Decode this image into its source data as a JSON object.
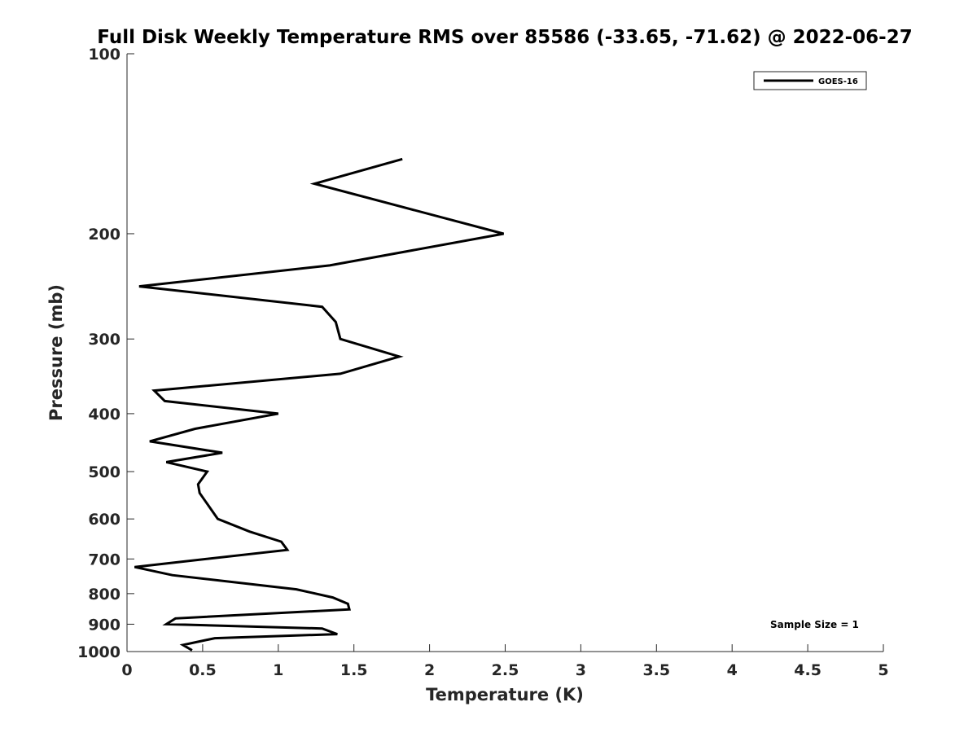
{
  "chart_data": {
    "type": "line",
    "title": "Full Disk Weekly Temperature RMS over 85586 (-33.65, -71.62) @ 2022-06-27",
    "xlabel": "Temperature (K)",
    "ylabel": "Pressure (mb)",
    "xlim": [
      0,
      5
    ],
    "ylim": [
      100,
      1000
    ],
    "y_scale": "log",
    "y_reversed": true,
    "grid": false,
    "legend_position": "top-right",
    "x_ticks": [
      "0",
      "0.5",
      "1",
      "1.5",
      "2",
      "2.5",
      "3",
      "3.5",
      "4",
      "4.5",
      "5"
    ],
    "y_ticks": [
      "100",
      "200",
      "300",
      "400",
      "500",
      "600",
      "700",
      "800",
      "900",
      "1000"
    ],
    "annotation": "Sample Size = 1",
    "series": [
      {
        "name": "GOES-16",
        "color": "#000000",
        "points": [
          [
            1.82,
            150
          ],
          [
            1.24,
            165
          ],
          [
            2.49,
            200
          ],
          [
            1.34,
            226
          ],
          [
            0.08,
            245
          ],
          [
            1.29,
            265
          ],
          [
            1.38,
            281
          ],
          [
            1.41,
            300
          ],
          [
            1.8,
            321
          ],
          [
            1.41,
            343
          ],
          [
            0.18,
            366
          ],
          [
            0.25,
            381
          ],
          [
            1.0,
            400
          ],
          [
            0.45,
            424
          ],
          [
            0.15,
            445
          ],
          [
            0.63,
            465
          ],
          [
            0.26,
            482
          ],
          [
            0.53,
            500
          ],
          [
            0.47,
            525
          ],
          [
            0.48,
            543
          ],
          [
            0.6,
            600
          ],
          [
            0.81,
            630
          ],
          [
            1.02,
            655
          ],
          [
            1.06,
            676
          ],
          [
            0.05,
            722
          ],
          [
            0.3,
            745
          ],
          [
            1.12,
            787
          ],
          [
            1.36,
            812
          ],
          [
            1.46,
            832
          ],
          [
            1.47,
            850
          ],
          [
            0.32,
            880
          ],
          [
            0.26,
            900
          ],
          [
            1.29,
            915
          ],
          [
            1.39,
            935
          ],
          [
            0.58,
            950
          ],
          [
            0.37,
            975
          ],
          [
            0.43,
            995
          ]
        ]
      }
    ]
  }
}
